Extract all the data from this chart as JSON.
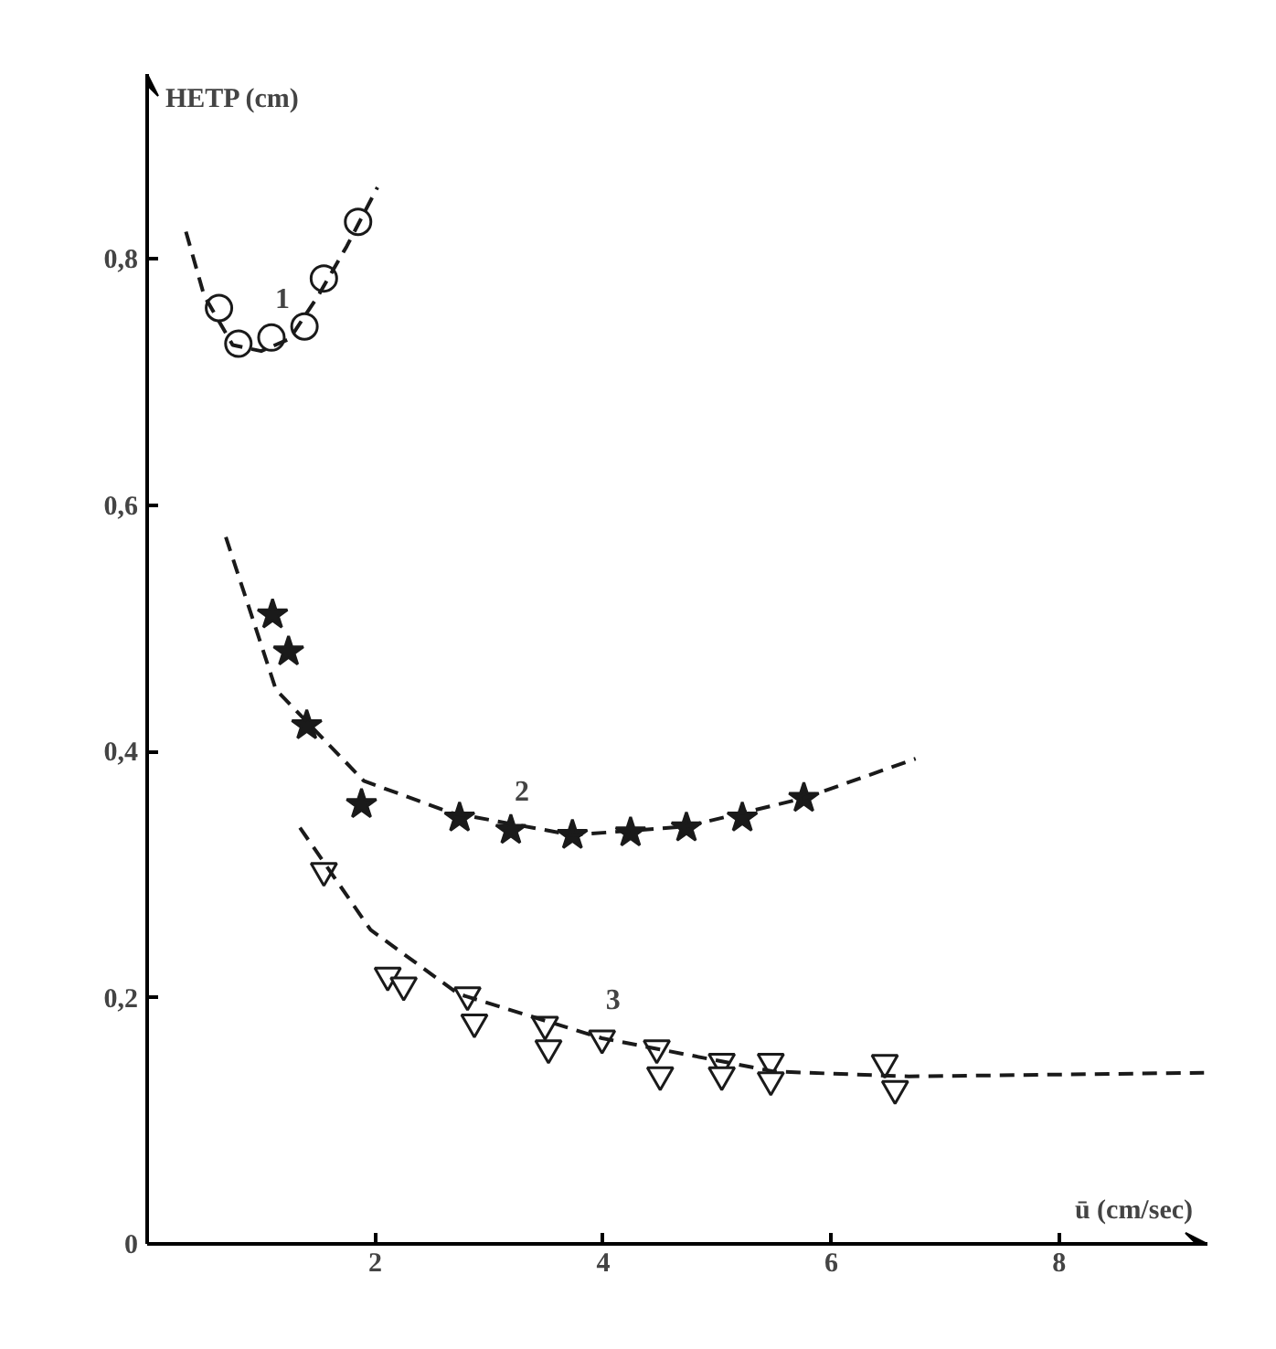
{
  "chart_data": {
    "type": "scatter",
    "xlabel": "ū (cm/sec)",
    "ylabel": "HETP (cm)",
    "xlim": [
      0,
      9.3
    ],
    "ylim": [
      0,
      0.95
    ],
    "xticks": [
      2,
      4,
      6,
      8
    ],
    "yticks": [
      0,
      {
        "value": 0.2,
        "label": "0,2"
      },
      {
        "value": 0.4,
        "label": "0,4"
      },
      {
        "value": 0.6,
        "label": "0,6"
      },
      {
        "value": 0.8,
        "label": "0,8"
      }
    ],
    "grid": false,
    "series": [
      {
        "name": "1",
        "marker": "circle",
        "color": "#1a1a1a",
        "x": [
          0.63,
          0.8,
          1.09,
          1.38,
          1.55,
          1.85
        ],
        "values": [
          0.76,
          0.731,
          0.736,
          0.745,
          0.784,
          0.83
        ]
      },
      {
        "type": "line",
        "marker": "none",
        "line_style": "dashed",
        "color": "#1a1a1a",
        "x": [
          0.34,
          0.5,
          0.75,
          1.0,
          1.25,
          1.5,
          1.75,
          2.02
        ],
        "values": [
          0.822,
          0.77,
          0.73,
          0.725,
          0.735,
          0.77,
          0.81,
          0.858
        ]
      },
      {
        "name": "2",
        "marker": "star",
        "color": "#1a1a1a",
        "x": [
          1.1,
          1.24,
          1.4,
          1.88,
          2.74,
          3.19,
          3.73,
          4.24,
          4.73,
          5.22,
          5.76
        ],
        "values": [
          0.511,
          0.481,
          0.421,
          0.357,
          0.346,
          0.336,
          0.332,
          0.334,
          0.338,
          0.346,
          0.362
        ]
      },
      {
        "type": "line",
        "marker": "none",
        "line_style": "dashed",
        "color": "#1a1a1a",
        "x": [
          0.69,
          1.13,
          1.9,
          2.67,
          3.73,
          4.73,
          5.76,
          6.74
        ],
        "values": [
          0.574,
          0.45,
          0.376,
          0.35,
          0.332,
          0.339,
          0.362,
          0.394
        ]
      },
      {
        "name": "3",
        "marker": "triangle",
        "color": "#1a1a1a",
        "x": [
          1.55,
          2.11,
          2.25,
          2.81,
          2.87,
          3.49,
          3.52,
          3.99,
          4.47,
          4.5,
          5.04,
          5.04,
          5.47,
          5.47,
          6.47,
          6.56
        ],
        "values": [
          0.303,
          0.218,
          0.21,
          0.202,
          0.18,
          0.178,
          0.159,
          0.167,
          0.159,
          0.137,
          0.148,
          0.137,
          0.148,
          0.133,
          0.147,
          0.126
        ]
      },
      {
        "type": "line",
        "marker": "none",
        "line_style": "dashed",
        "color": "#1a1a1a",
        "x": [
          1.34,
          1.96,
          2.73,
          3.99,
          5.5,
          6.68,
          9.27
        ],
        "values": [
          0.338,
          0.255,
          0.203,
          0.167,
          0.14,
          0.136,
          0.139
        ]
      }
    ]
  }
}
